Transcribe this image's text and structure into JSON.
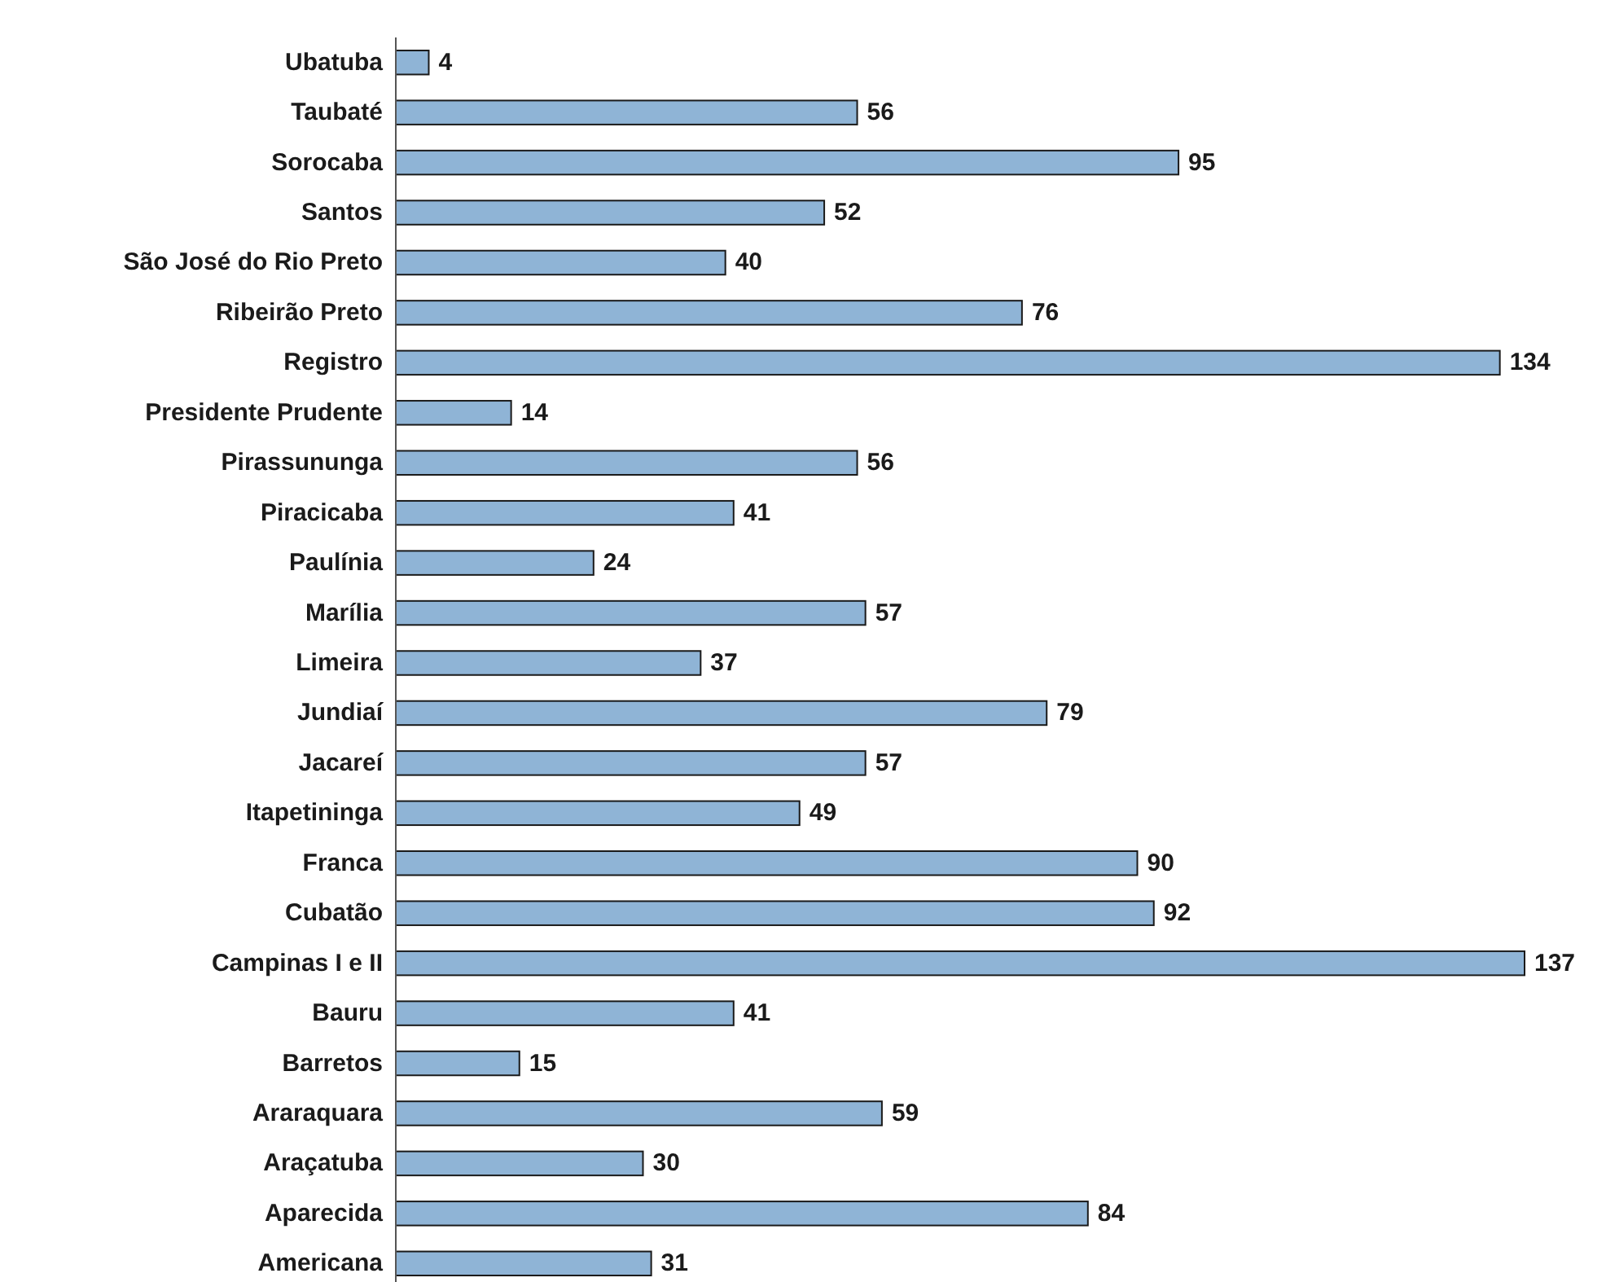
{
  "chart_data": {
    "type": "bar",
    "orientation": "horizontal",
    "categories": [
      "Ubatuba",
      "Taubaté",
      "Sorocaba",
      "Santos",
      "São José do Rio Preto",
      "Ribeirão Preto",
      "Registro",
      "Presidente Prudente",
      "Pirassununga",
      "Piracicaba",
      "Paulínia",
      "Marília",
      "Limeira",
      "Jundiaí",
      "Jacareí",
      "Itapetininga",
      "Franca",
      "Cubatão",
      "Campinas I e II",
      "Bauru",
      "Barretos",
      "Araraquara",
      "Araçatuba",
      "Aparecida",
      "Americana"
    ],
    "values": [
      4,
      56,
      95,
      52,
      40,
      76,
      134,
      14,
      56,
      41,
      24,
      57,
      37,
      79,
      57,
      49,
      90,
      92,
      137,
      41,
      15,
      59,
      30,
      84,
      31
    ],
    "color": "#8fb4d6",
    "data_labels": true
  }
}
